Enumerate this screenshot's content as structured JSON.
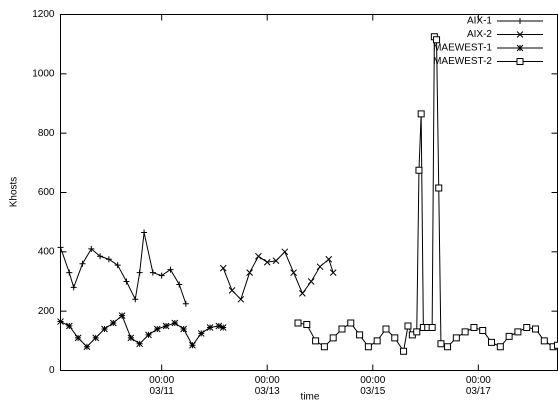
{
  "chart_data": {
    "type": "line",
    "ylabel": "Khosts",
    "xlabel": "time",
    "xlim": [
      "03/09 02:00",
      "03/18 12:00"
    ],
    "xticks": [
      {
        "value": "03/11 00:00",
        "label": "00:00 03/11"
      },
      {
        "value": "03/13 00:00",
        "label": "00:00 03/13"
      },
      {
        "value": "03/15 00:00",
        "label": "00:00 03/15"
      },
      {
        "value": "03/17 00:00",
        "label": "00:00 03/17"
      }
    ],
    "ylim": [
      0,
      1200
    ],
    "yticks": [
      0,
      200,
      400,
      600,
      800,
      1000,
      1200
    ],
    "grid": false,
    "legend": "top-right",
    "series": [
      {
        "name": "AIX-1",
        "color": "#000000",
        "marker": "plus",
        "x": [
          "03/09 02:00",
          "03/09 06:00",
          "03/09 08:00",
          "03/09 12:00",
          "03/09 16:00",
          "03/09 20:00",
          "03/10 00:00",
          "03/10 04:00",
          "03/10 08:00",
          "03/10 12:00",
          "03/10 14:00",
          "03/10 16:00",
          "03/10 20:00",
          "03/11 00:00",
          "03/11 04:00",
          "03/11 08:00",
          "03/11 11:00"
        ],
        "values": [
          415,
          330,
          280,
          360,
          410,
          385,
          375,
          355,
          300,
          240,
          330,
          465,
          330,
          320,
          340,
          290,
          225
        ]
      },
      {
        "name": "AIX-2",
        "color": "#000000",
        "marker": "cross",
        "x": [
          "03/12 04:00",
          "03/12 08:00",
          "03/12 12:00",
          "03/12 16:00",
          "03/12 20:00",
          "03/13 00:00",
          "03/13 04:00",
          "03/13 08:00",
          "03/13 12:00",
          "03/13 16:00",
          "03/13 20:00",
          "03/14 00:00",
          "03/14 04:00",
          "03/14 06:00"
        ],
        "values": [
          345,
          270,
          240,
          330,
          385,
          365,
          370,
          400,
          330,
          260,
          300,
          350,
          375,
          330
        ]
      },
      {
        "name": "MAEWEST-1",
        "color": "#000000",
        "marker": "star",
        "x": [
          "03/09 02:00",
          "03/09 06:00",
          "03/09 10:00",
          "03/09 14:00",
          "03/09 18:00",
          "03/09 22:00",
          "03/10 02:00",
          "03/10 06:00",
          "03/10 10:00",
          "03/10 14:00",
          "03/10 18:00",
          "03/10 22:00",
          "03/11 02:00",
          "03/11 06:00",
          "03/11 10:00",
          "03/11 14:00",
          "03/11 18:00",
          "03/11 22:00",
          "03/12 02:00",
          "03/12 04:00"
        ],
        "values": [
          165,
          150,
          110,
          80,
          110,
          140,
          160,
          185,
          110,
          90,
          120,
          140,
          150,
          160,
          140,
          85,
          125,
          145,
          150,
          145
        ]
      },
      {
        "name": "MAEWEST-2",
        "color": "#000000",
        "marker": "box",
        "x": [
          "03/13 14:00",
          "03/13 18:00",
          "03/13 22:00",
          "03/14 02:00",
          "03/14 06:00",
          "03/14 10:00",
          "03/14 14:00",
          "03/14 18:00",
          "03/14 22:00",
          "03/15 02:00",
          "03/15 06:00",
          "03/15 10:00",
          "03/15 14:00",
          "03/15 16:00",
          "03/15 18:00",
          "03/15 20:00",
          "03/15 21:00",
          "03/15 22:00",
          "03/15 23:00",
          "03/16 01:00",
          "03/16 03:00",
          "03/16 04:00",
          "03/16 05:00",
          "03/16 06:00",
          "03/16 07:00",
          "03/16 10:00",
          "03/16 14:00",
          "03/16 18:00",
          "03/16 22:00",
          "03/17 02:00",
          "03/17 06:00",
          "03/17 10:00",
          "03/17 14:00",
          "03/17 18:00",
          "03/17 22:00",
          "03/18 02:00",
          "03/18 06:00",
          "03/18 10:00",
          "03/18 12:00"
        ],
        "values": [
          160,
          155,
          100,
          80,
          110,
          140,
          160,
          120,
          80,
          100,
          140,
          110,
          65,
          150,
          120,
          130,
          675,
          865,
          145,
          145,
          145,
          1125,
          1115,
          615,
          90,
          80,
          110,
          130,
          145,
          135,
          95,
          80,
          115,
          130,
          145,
          140,
          100,
          80,
          85
        ]
      }
    ]
  }
}
